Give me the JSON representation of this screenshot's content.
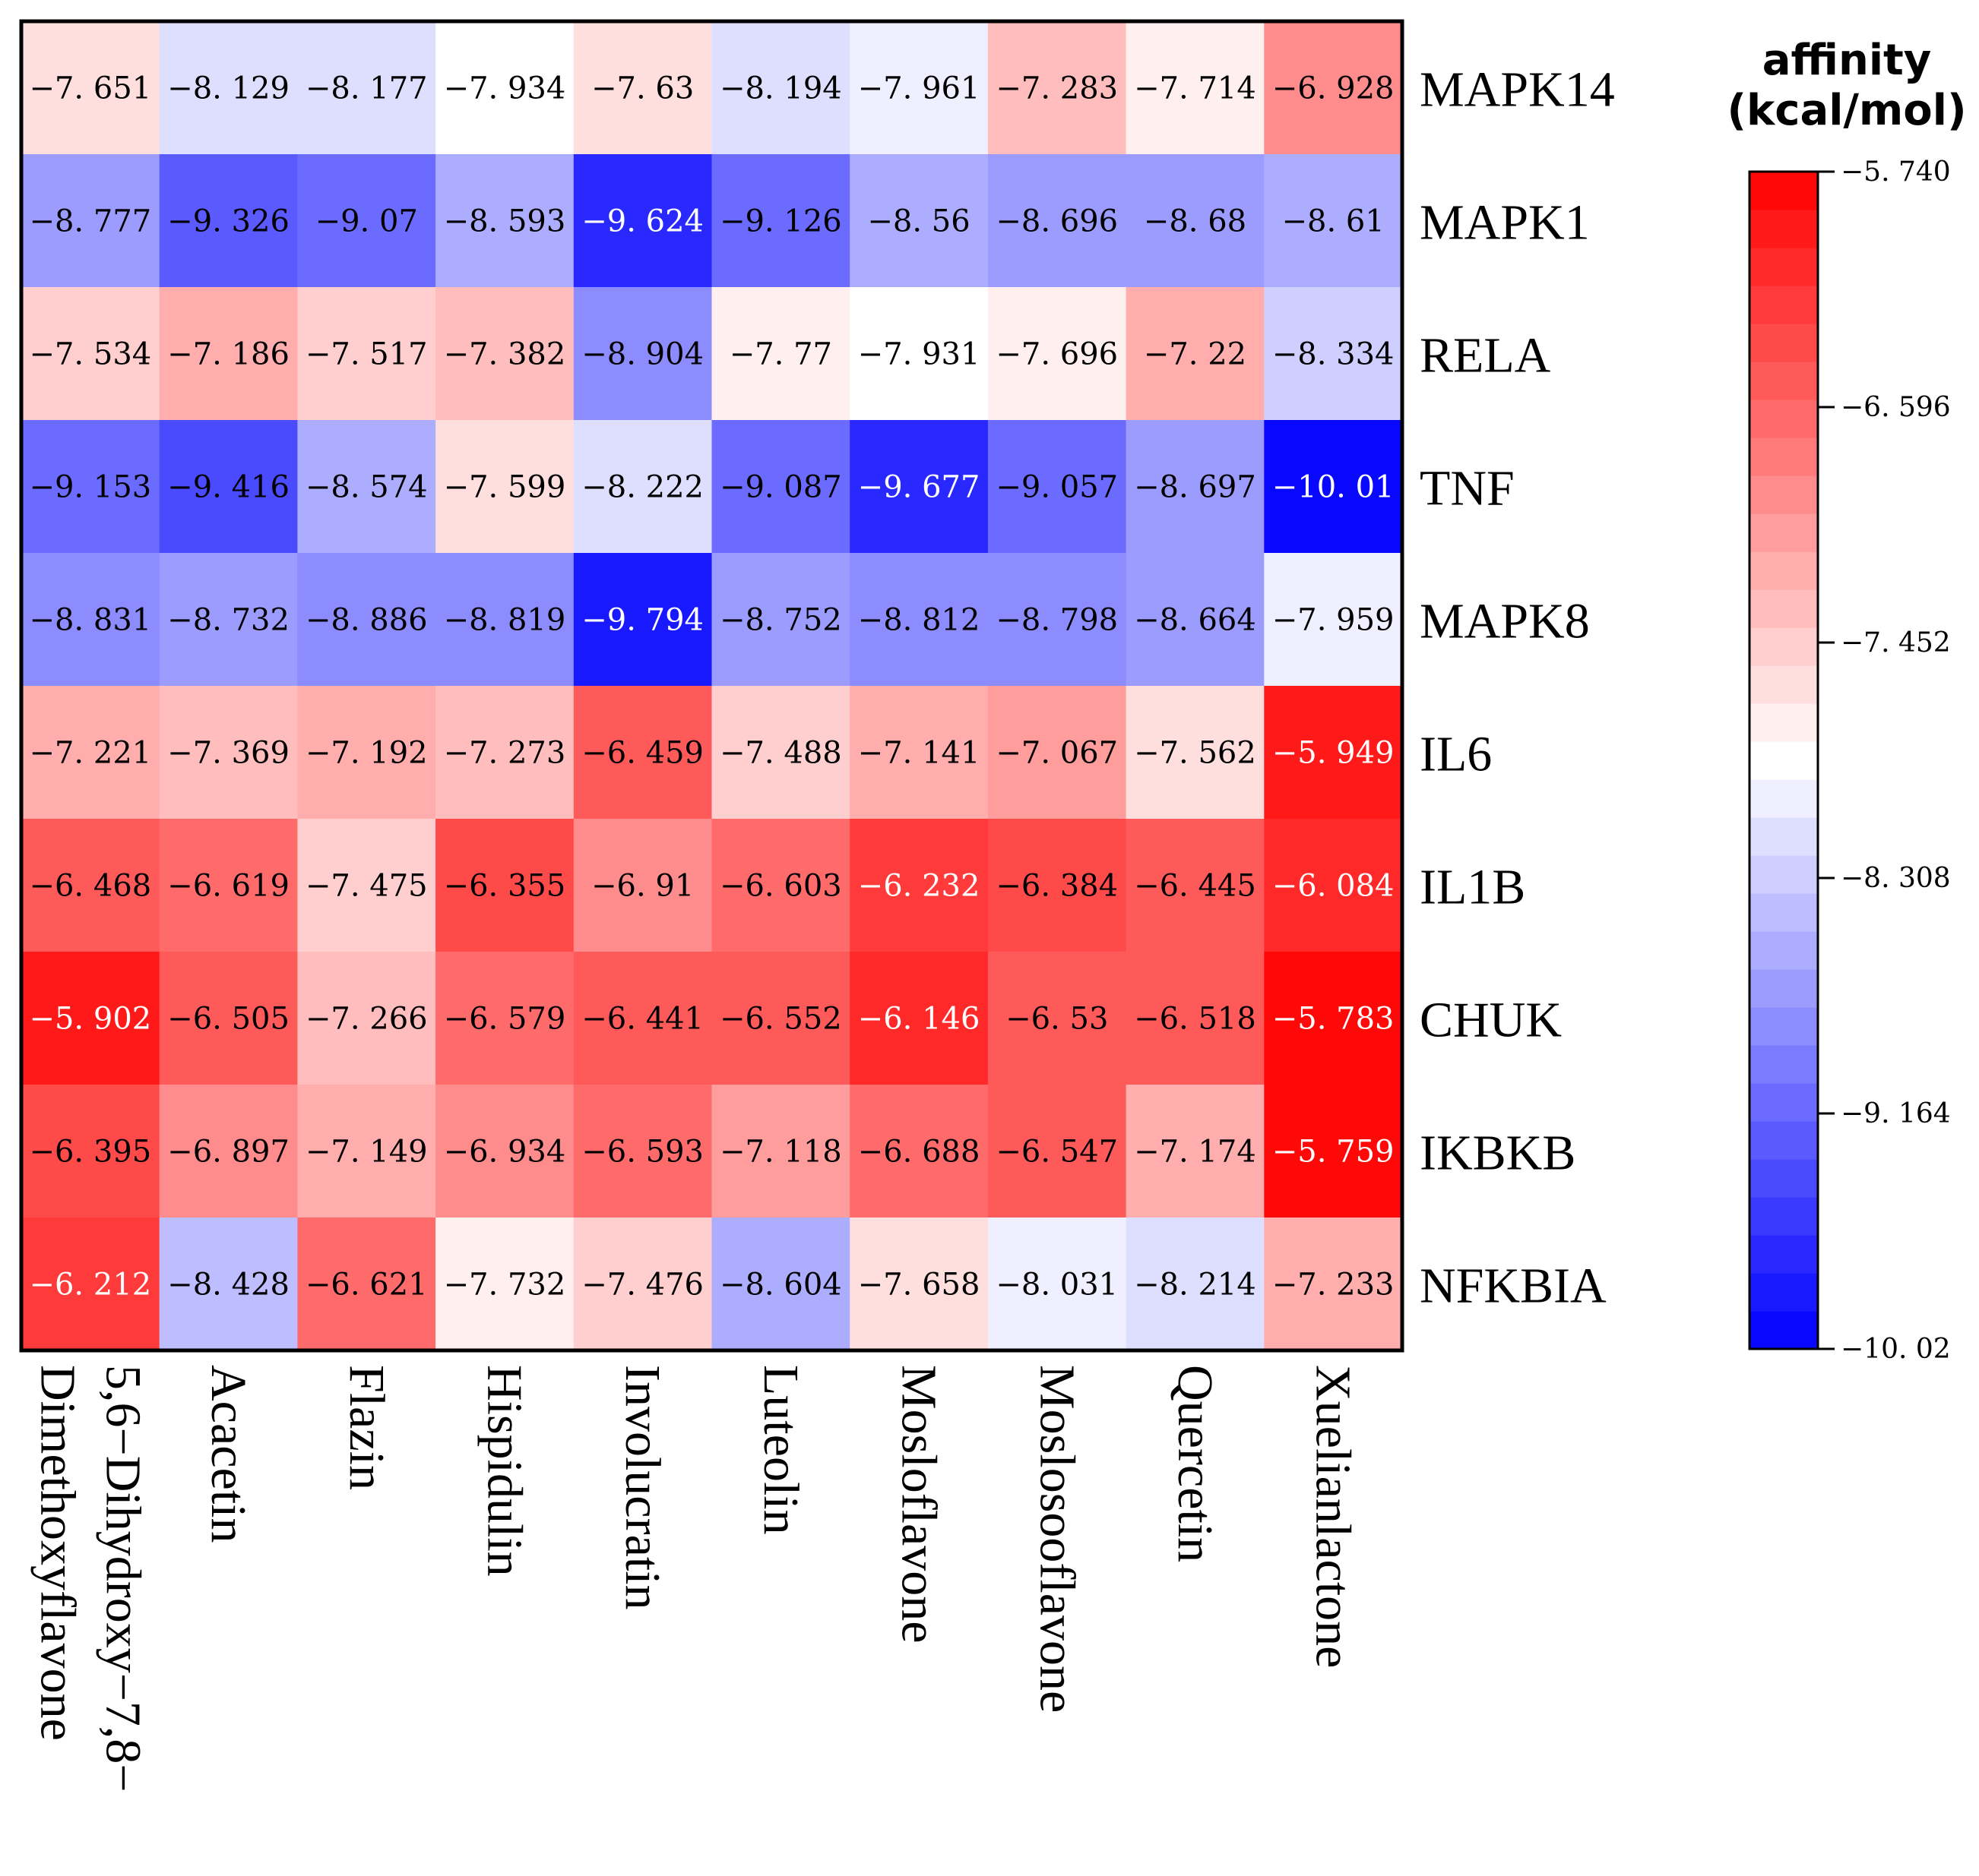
{
  "chart_data": {
    "type": "heatmap",
    "rows": [
      "MAPK14",
      "MAPK1",
      "RELA",
      "TNF",
      "MAPK8",
      "IL6",
      "IL1B",
      "CHUK",
      "IKBKB",
      "NFKBIA"
    ],
    "columns": [
      [
        "5,6−Dihydroxy−7,8−",
        "Dimethoxyflavone"
      ],
      [
        "Acacetin"
      ],
      [
        "Flazin"
      ],
      [
        "Hispidulin"
      ],
      [
        "Involucratin"
      ],
      [
        "Luteolin"
      ],
      [
        "Mosloflavone"
      ],
      [
        "Moslosooflavone"
      ],
      [
        "Quercetin"
      ],
      [
        "Xuelianlactone"
      ]
    ],
    "values": [
      [
        -7.651,
        -8.129,
        -8.177,
        -7.934,
        -7.63,
        -8.194,
        -7.961,
        -7.283,
        -7.714,
        -6.928
      ],
      [
        -8.777,
        -9.326,
        -9.07,
        -8.593,
        -9.624,
        -9.126,
        -8.56,
        -8.696,
        -8.68,
        -8.61
      ],
      [
        -7.534,
        -7.186,
        -7.517,
        -7.382,
        -8.904,
        -7.77,
        -7.931,
        -7.696,
        -7.22,
        -8.334
      ],
      [
        -9.153,
        -9.416,
        -8.574,
        -7.599,
        -8.222,
        -9.087,
        -9.677,
        -9.057,
        -8.697,
        -10.01
      ],
      [
        -8.831,
        -8.732,
        -8.886,
        -8.819,
        -9.794,
        -8.752,
        -8.812,
        -8.798,
        -8.664,
        -7.959
      ],
      [
        -7.221,
        -7.369,
        -7.192,
        -7.273,
        -6.459,
        -7.488,
        -7.141,
        -7.067,
        -7.562,
        -5.949
      ],
      [
        -6.468,
        -6.619,
        -7.475,
        -6.355,
        -6.91,
        -6.603,
        -6.232,
        -6.384,
        -6.445,
        -6.084
      ],
      [
        -5.902,
        -6.505,
        -7.266,
        -6.579,
        -6.441,
        -6.552,
        -6.146,
        -6.53,
        -6.518,
        -5.783
      ],
      [
        -6.395,
        -6.897,
        -7.149,
        -6.934,
        -6.593,
        -7.118,
        -6.688,
        -6.547,
        -7.174,
        -5.759
      ],
      [
        -6.212,
        -8.428,
        -6.621,
        -7.732,
        -7.476,
        -8.604,
        -7.658,
        -8.031,
        -8.214,
        -7.233
      ]
    ],
    "value_labels": [
      [
        "−7. 651",
        "−8. 129",
        "−8. 177",
        "−7. 934",
        "−7. 63",
        "−8. 194",
        "−7. 961",
        "−7. 283",
        "−7. 714",
        "−6. 928"
      ],
      [
        "−8. 777",
        "−9. 326",
        "−9. 07",
        "−8. 593",
        "−9. 624",
        "−9. 126",
        "−8. 56",
        "−8. 696",
        "−8. 68",
        "−8. 61"
      ],
      [
        "−7. 534",
        "−7. 186",
        "−7. 517",
        "−7. 382",
        "−8. 904",
        "−7. 77",
        "−7. 931",
        "−7. 696",
        "−7. 22",
        "−8. 334"
      ],
      [
        "−9. 153",
        "−9. 416",
        "−8. 574",
        "−7. 599",
        "−8. 222",
        "−9. 087",
        "−9. 677",
        "−9. 057",
        "−8. 697",
        "−10. 01"
      ],
      [
        "−8. 831",
        "−8. 732",
        "−8. 886",
        "−8. 819",
        "−9. 794",
        "−8. 752",
        "−8. 812",
        "−8. 798",
        "−8. 664",
        "−7. 959"
      ],
      [
        "−7. 221",
        "−7. 369",
        "−7. 192",
        "−7. 273",
        "−6. 459",
        "−7. 488",
        "−7. 141",
        "−7. 067",
        "−7. 562",
        "−5. 949"
      ],
      [
        "−6. 468",
        "−6. 619",
        "−7. 475",
        "−6. 355",
        "−6. 91",
        "−6. 603",
        "−6. 232",
        "−6. 384",
        "−6. 445",
        "−6. 084"
      ],
      [
        "−5. 902",
        "−6. 505",
        "−7. 266",
        "−6. 579",
        "−6. 441",
        "−6. 552",
        "−6. 146",
        "−6. 53",
        "−6. 518",
        "−5. 783"
      ],
      [
        "−6. 395",
        "−6. 897",
        "−7. 149",
        "−6. 934",
        "−6. 593",
        "−7. 118",
        "−6. 688",
        "−6. 547",
        "−7. 174",
        "−5. 759"
      ],
      [
        "−6. 212",
        "−8. 428",
        "−6. 621",
        "−7. 732",
        "−7. 476",
        "−8. 604",
        "−7. 658",
        "−8. 031",
        "−8. 214",
        "−7. 233"
      ]
    ],
    "colorbar": {
      "title": [
        "affinity",
        "(kcal/mol)"
      ],
      "range": [
        -10.02,
        -5.74
      ],
      "ticks": [
        -5.74,
        -6.596,
        -7.452,
        -8.308,
        -9.164,
        -10.02
      ],
      "tick_labels": [
        "−5. 740",
        "−6. 596",
        "−7. 452",
        "−8. 308",
        "−9. 164",
        "−10. 02"
      ],
      "levels": 31,
      "color_low": "#0000ff",
      "color_mid": "#ffffff",
      "color_high": "#ff0000"
    },
    "cell_text_dark": "#000000",
    "cell_text_light": "#ffffff",
    "legend_placement": "right"
  }
}
